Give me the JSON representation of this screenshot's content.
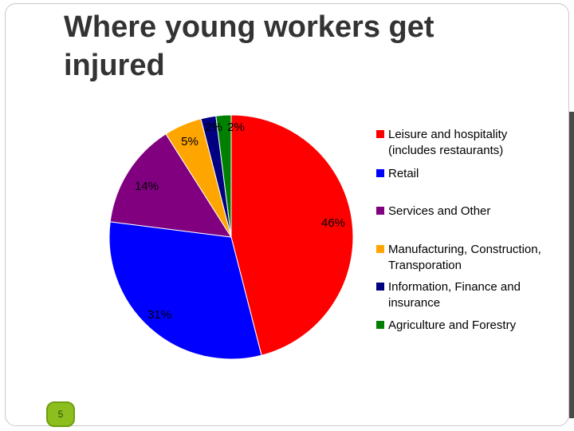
{
  "slide": {
    "title": "Where young workers get injured",
    "page_number": "5"
  },
  "chart_data": {
    "type": "pie",
    "title": "",
    "legend_position": "right",
    "series": [
      {
        "name": "Leisure and hospitality (includes restaurants)",
        "label_lines": [
          "Leisure and hospitality",
          "(includes restaurants)"
        ],
        "value": 46,
        "label": "46%",
        "color": "#ff0000"
      },
      {
        "name": "Retail",
        "label_lines": [
          "Retail"
        ],
        "value": 31,
        "label": "31%",
        "color": "#0000ff"
      },
      {
        "name": "Services and Other",
        "label_lines": [
          "Services and Other"
        ],
        "value": 14,
        "label": "14%",
        "color": "#800080"
      },
      {
        "name": "Manufacturing, Construction, Transporation",
        "label_lines": [
          "Manufacturing, Construction,",
          "Transporation"
        ],
        "value": 5,
        "label": "5%",
        "color": "#ffa500"
      },
      {
        "name": "Information, Finance and insurance",
        "label_lines": [
          "Information, Finance and",
          "insurance"
        ],
        "value": 2,
        "label": "2%",
        "color": "#000080"
      },
      {
        "name": "Agriculture and Forestry",
        "label_lines": [
          "Agriculture and Forestry"
        ],
        "value": 2,
        "label": "2%",
        "color": "#008000"
      }
    ]
  }
}
